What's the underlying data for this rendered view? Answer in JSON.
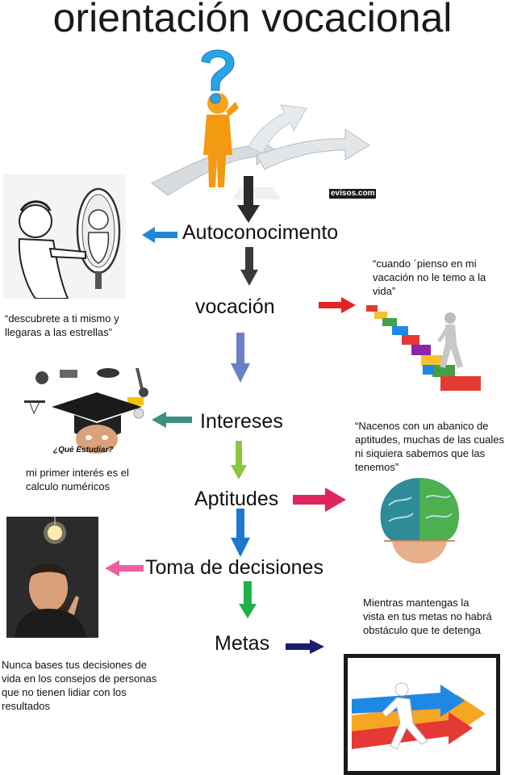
{
  "title": "orientación vocacional",
  "steps": {
    "autoconocimiento": "Autoconocimento",
    "vocacion": "vocación",
    "intereses": "Intereses",
    "aptitudes": "Aptitudes",
    "toma_decisiones": "Toma de decisiones",
    "metas": "Metas"
  },
  "quotes": {
    "mirror": "“descubrete a ti mismo y llegaras a las estrellas”",
    "vocacion": "“cuando ´pienso en mi vacación no le temo a la vida”",
    "intereses": "mi primer interés es el calculo numéricos",
    "aptitudes": "“Nacenos con un abanico de aptitudes, muchas de las cuales ni siquiera sabemos que las tenemos”",
    "decisiones": "Nunca bases tus decisiones de vida en los consejos de personas que no tienen lidiar con los resultados",
    "metas": "Mientras mantengas la vista en tus metas no habrá obstáculo que te detenga"
  },
  "image_text": {
    "watermark": "evisos.com",
    "que_estudiar": "¿Qué Estudiar?"
  },
  "colors": {
    "arrow_black": "#2b2b2b",
    "arrow_blue": "#1e88d8",
    "arrow_red": "#e02424",
    "arrow_slate": "#6a7fc8",
    "arrow_teal": "#3f8f7f",
    "arrow_lime": "#8cc63f",
    "arrow_crimson": "#e0245e",
    "arrow_royal": "#1d78d0",
    "arrow_pink": "#ee5fa0",
    "arrow_green": "#22b04a",
    "arrow_navy": "#1d1d6a"
  }
}
